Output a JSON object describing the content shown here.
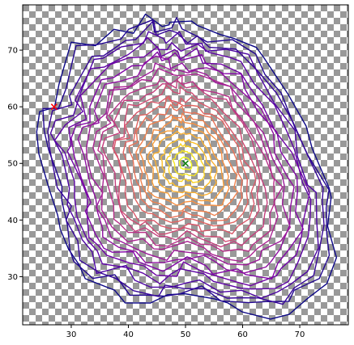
{
  "chart_data": {
    "type": "line",
    "title": "",
    "xlabel": "",
    "ylabel": "",
    "xlim": [
      21.5,
      78.5
    ],
    "ylim": [
      21.5,
      78.0
    ],
    "x_ticks": [
      30,
      40,
      50,
      60,
      70
    ],
    "y_ticks": [
      30,
      40,
      50,
      60,
      70
    ],
    "x_tick_labels": [
      "30",
      "40",
      "50",
      "60",
      "70"
    ],
    "y_tick_labels": [
      "30",
      "40",
      "50",
      "60",
      "70"
    ],
    "grid": false,
    "legend": "none",
    "background": "checkerboard gray/white",
    "colormap": "plasma",
    "center": {
      "x": 50,
      "y": 50
    },
    "contour_count": 24,
    "outer_contour": [
      [
        24.5,
        59.0
      ],
      [
        28.0,
        60.5
      ],
      [
        28.0,
        64.0
      ],
      [
        31.0,
        70.5
      ],
      [
        34.0,
        71.0
      ],
      [
        38.0,
        73.0
      ],
      [
        40.5,
        74.0
      ],
      [
        43.0,
        77.0
      ],
      [
        45.5,
        75.0
      ],
      [
        47.0,
        74.5
      ],
      [
        48.0,
        76.0
      ],
      [
        50.0,
        74.0
      ],
      [
        53.0,
        74.5
      ],
      [
        55.0,
        73.5
      ],
      [
        58.5,
        72.0
      ],
      [
        62.0,
        71.0
      ],
      [
        64.5,
        67.5
      ],
      [
        68.0,
        63.0
      ],
      [
        71.0,
        57.0
      ],
      [
        73.0,
        52.0
      ],
      [
        75.5,
        46.0
      ],
      [
        76.5,
        43.0
      ],
      [
        75.5,
        38.0
      ],
      [
        76.5,
        34.0
      ],
      [
        74.5,
        29.0
      ],
      [
        71.0,
        26.0
      ],
      [
        69.0,
        24.0
      ],
      [
        65.0,
        23.5
      ],
      [
        61.0,
        24.0
      ],
      [
        57.0,
        25.0
      ],
      [
        54.0,
        26.5
      ],
      [
        50.0,
        27.0
      ],
      [
        47.0,
        26.0
      ],
      [
        44.0,
        25.5
      ],
      [
        40.0,
        26.0
      ],
      [
        37.0,
        28.5
      ],
      [
        33.0,
        29.0
      ],
      [
        30.5,
        31.0
      ],
      [
        28.5,
        34.0
      ],
      [
        27.5,
        38.0
      ],
      [
        27.5,
        42.0
      ],
      [
        26.5,
        46.0
      ],
      [
        25.0,
        52.0
      ],
      [
        23.5,
        55.0
      ]
    ],
    "markers": [
      {
        "name": "start",
        "symbol": "x",
        "color": "#ff0000",
        "x": 27.0,
        "y": 60.0
      },
      {
        "name": "center",
        "symbol": "x",
        "color": "#008000",
        "x": 50.0,
        "y": 50.0
      }
    ]
  }
}
